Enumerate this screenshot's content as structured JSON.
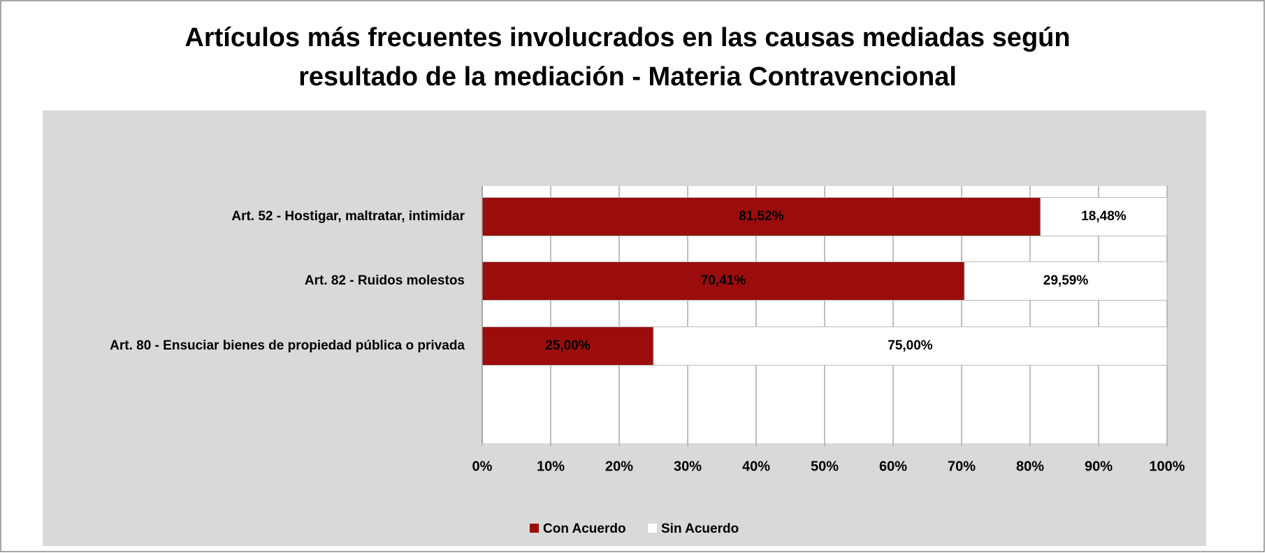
{
  "chart_data": {
    "type": "stacked_bar_horizontal",
    "title": [
      "Artículos más frecuentes involucrados en las causas mediadas según",
      "resultado de la mediación - Materia Contravencional"
    ],
    "categories": [
      "Art. 52 - Hostigar, maltratar, intimidar",
      "Art. 82 - Ruidos molestos",
      "Art. 80 - Ensuciar bienes de propiedad pública o privada"
    ],
    "series": [
      {
        "name": "Con Acuerdo",
        "color": "#9b0c0c",
        "values": [
          81.52,
          70.41,
          25.0
        ],
        "value_labels": [
          "81,52%",
          "70,41%",
          "25,00%"
        ]
      },
      {
        "name": "Sin Acuerdo",
        "color": "#ffffff",
        "values": [
          18.48,
          29.59,
          75.0
        ],
        "value_labels": [
          "18,48%",
          "29,59%",
          "75,00%"
        ]
      }
    ],
    "xlim": [
      0,
      100
    ],
    "xticks": [
      {
        "value": 0,
        "label": "0%"
      },
      {
        "value": 10,
        "label": "10%"
      },
      {
        "value": 20,
        "label": "20%"
      },
      {
        "value": 30,
        "label": "30%"
      },
      {
        "value": 40,
        "label": "40%"
      },
      {
        "value": 50,
        "label": "50%"
      },
      {
        "value": 60,
        "label": "60%"
      },
      {
        "value": 70,
        "label": "70%"
      },
      {
        "value": 80,
        "label": "80%"
      },
      {
        "value": 90,
        "label": "90%"
      },
      {
        "value": 100,
        "label": "100%"
      }
    ],
    "grid": true,
    "legend": "bottom"
  }
}
